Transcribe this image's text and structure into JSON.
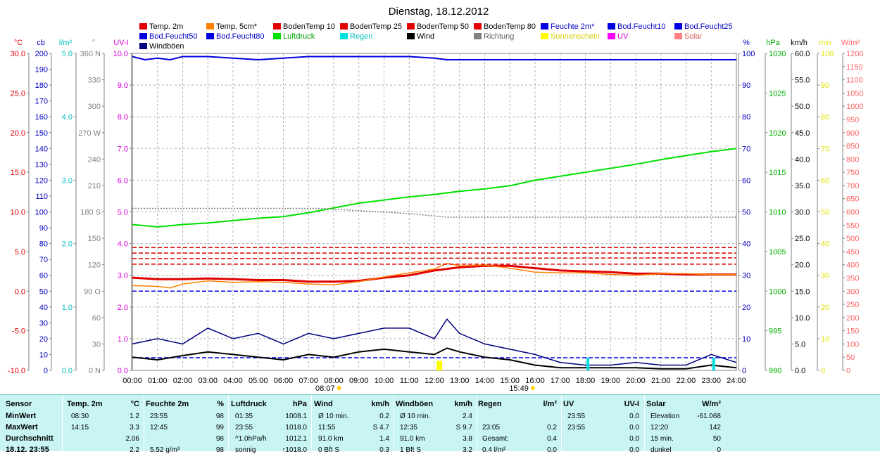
{
  "title": "Dienstag, 18.12.2012",
  "legend": [
    {
      "label": "Temp. 2m",
      "color": "#e00000",
      "style": "solid"
    },
    {
      "label": "Temp. 5cm*",
      "color": "#ff8000",
      "style": "solid"
    },
    {
      "label": "BodenTemp 10",
      "color": "#e00000",
      "style": "dash"
    },
    {
      "label": "BodenTemp 25",
      "color": "#e00000",
      "style": "dash"
    },
    {
      "label": "BodenTemp 50",
      "color": "#e00000",
      "style": "dash"
    },
    {
      "label": "BodenTemp 80",
      "color": "#e00000",
      "style": "dash"
    },
    {
      "label": "Feuchte 2m*",
      "color": "#0000e0",
      "style": "solid"
    },
    {
      "label": "Bod.Feucht10",
      "color": "#0000e0",
      "style": "dash"
    },
    {
      "label": "Bod.Feucht25",
      "color": "#0000e0",
      "style": "dash"
    },
    {
      "label": "Bod.Feucht50",
      "color": "#0000e0",
      "style": "dash"
    },
    {
      "label": "Bod.Feucht80",
      "color": "#0000e0",
      "style": "dash"
    },
    {
      "label": "Luftdruck",
      "color": "#00e000",
      "style": "solid"
    },
    {
      "label": "Regen",
      "color": "#00e0e0",
      "style": "bar"
    },
    {
      "label": "Wind",
      "color": "#000000",
      "style": "solid"
    },
    {
      "label": "Richtung",
      "color": "#808080",
      "style": "dot"
    },
    {
      "label": "Sonnenschein",
      "color": "#ffff00",
      "style": "bar"
    },
    {
      "label": "UV",
      "color": "#ff00ff",
      "style": "solid"
    },
    {
      "label": "Solar",
      "color": "#ff8080",
      "style": "solid"
    },
    {
      "label": "Windböen",
      "color": "#000080",
      "style": "solid"
    }
  ],
  "axes_left": [
    {
      "unit": "°C",
      "color": "#e00000",
      "ticks": [
        "30.0",
        "25.0",
        "20.0",
        "15.0",
        "10.0",
        "5.0",
        "0.0",
        "-5.0",
        "-10.0"
      ]
    },
    {
      "unit": "cb",
      "color": "#0000c0",
      "ticks": [
        "200",
        "190",
        "180",
        "170",
        "160",
        "150",
        "140",
        "130",
        "120",
        "110",
        "100",
        "90",
        "80",
        "70",
        "60",
        "50",
        "40",
        "30",
        "20",
        "10",
        "0"
      ]
    },
    {
      "unit": "l/m²",
      "color": "#00c0c0",
      "ticks": [
        "5.0",
        "4.0",
        "3.0",
        "2.0",
        "1.0",
        "0.0"
      ]
    },
    {
      "unit": "°",
      "color": "#808080",
      "ticks": [
        "360 N",
        "330",
        "300",
        "270 W",
        "240",
        "210",
        "180 S",
        "150",
        "120",
        "90 O",
        "60",
        "30",
        "0 N"
      ]
    },
    {
      "unit": "UV-I",
      "color": "#e000e0",
      "ticks": [
        "10.0",
        "9.0",
        "8.0",
        "7.0",
        "6.0",
        "5.0",
        "4.0",
        "3.0",
        "2.0",
        "1.0",
        "0.0"
      ]
    }
  ],
  "axes_right": [
    {
      "unit": "%",
      "color": "#0000c0",
      "ticks": [
        "100",
        "90",
        "80",
        "70",
        "60",
        "50",
        "40",
        "30",
        "20",
        "10",
        "0"
      ]
    },
    {
      "unit": "hPa",
      "color": "#00b000",
      "ticks": [
        "1030",
        "1025",
        "1020",
        "1015",
        "1010",
        "1005",
        "1000",
        "995",
        "990"
      ]
    },
    {
      "unit": "km/h",
      "color": "#000000",
      "ticks": [
        "60.0",
        "55.0",
        "50.0",
        "45.0",
        "40.0",
        "35.0",
        "30.0",
        "25.0",
        "20.0",
        "15.0",
        "10.0",
        "5.0",
        "0.0"
      ]
    },
    {
      "unit": "min",
      "color": "#e0e000",
      "ticks": [
        "100",
        "90",
        "80",
        "70",
        "60",
        "50",
        "40",
        "30",
        "20",
        "10",
        "0"
      ]
    },
    {
      "unit": "W/m²",
      "color": "#ff6060",
      "ticks": [
        "1200",
        "1150",
        "1100",
        "1050",
        "1000",
        "950",
        "900",
        "850",
        "800",
        "750",
        "700",
        "650",
        "600",
        "550",
        "500",
        "450",
        "400",
        "350",
        "300",
        "250",
        "200",
        "150",
        "100",
        "50",
        "0"
      ]
    }
  ],
  "time_labels": [
    "00:00",
    "01:00",
    "02:00",
    "03:00",
    "04:00",
    "05:00",
    "06:00",
    "07:00",
    "08:00",
    "09:00",
    "10:00",
    "11:00",
    "12:00",
    "13:00",
    "14:00",
    "15:00",
    "16:00",
    "17:00",
    "18:00",
    "19:00",
    "20:00",
    "21:00",
    "22:00",
    "23:00",
    "24:00"
  ],
  "sunrise_label": "08:07",
  "sunset_label": "15:49",
  "chart_data": {
    "type": "line",
    "title": "Dienstag, 18.12.2012",
    "x_unit": "hour",
    "xlim": [
      0,
      24
    ],
    "series": [
      {
        "name": "Feuchte 2m*",
        "unit": "%",
        "ylim": [
          0,
          100
        ],
        "color": "#0000e0",
        "x": [
          0,
          0.5,
          1,
          1.5,
          2,
          3,
          4,
          5,
          6,
          7,
          8,
          9,
          10,
          11,
          12,
          12.5,
          13,
          14,
          15,
          16,
          17,
          18,
          19,
          20,
          21,
          22,
          23,
          24
        ],
        "y": [
          99,
          98,
          98.5,
          98,
          99,
          99,
          98.5,
          98,
          98.5,
          99,
          99,
          99,
          99,
          99,
          98.5,
          98,
          98,
          98,
          98,
          98,
          98,
          98,
          98,
          98,
          98,
          98,
          98,
          98
        ]
      },
      {
        "name": "Luftdruck",
        "unit": "hPa",
        "ylim": [
          990,
          1030
        ],
        "color": "#00e000",
        "x": [
          0,
          1,
          2,
          3,
          4,
          5,
          6,
          7,
          8,
          9,
          10,
          11,
          12,
          13,
          14,
          15,
          16,
          17,
          18,
          19,
          20,
          21,
          22,
          23,
          24
        ],
        "y": [
          1008.4,
          1008.1,
          1008.4,
          1008.6,
          1008.9,
          1009.2,
          1009.4,
          1009.9,
          1010.5,
          1011.1,
          1011.5,
          1011.9,
          1012.2,
          1012.6,
          1012.9,
          1013.3,
          1014.0,
          1014.5,
          1015.0,
          1015.5,
          1016.0,
          1016.6,
          1017.1,
          1017.6,
          1018.0
        ]
      },
      {
        "name": "Temp. 2m",
        "unit": "°C",
        "ylim": [
          -10,
          30
        ],
        "color": "#e00000",
        "x": [
          0,
          1,
          2,
          3,
          4,
          5,
          6,
          7,
          8,
          9,
          10,
          11,
          12,
          13,
          14,
          15,
          16,
          17,
          18,
          19,
          20,
          21,
          22,
          23,
          24
        ],
        "y": [
          1.7,
          1.5,
          1.5,
          1.6,
          1.5,
          1.4,
          1.4,
          1.2,
          1.2,
          1.3,
          1.7,
          2.0,
          2.6,
          3.0,
          3.2,
          3.2,
          2.9,
          2.6,
          2.5,
          2.4,
          2.2,
          2.2,
          2.1,
          2.1,
          2.1
        ]
      },
      {
        "name": "Temp. 5cm*",
        "unit": "°C",
        "ylim": [
          -10,
          30
        ],
        "color": "#ff8000",
        "x": [
          0,
          1,
          1.5,
          2,
          3,
          4,
          5,
          6,
          7,
          8,
          9,
          10,
          11,
          12,
          12.5,
          13,
          14,
          15,
          16,
          17,
          18,
          19,
          20,
          21,
          22,
          23,
          24
        ],
        "y": [
          0.7,
          0.6,
          0.4,
          0.9,
          1.3,
          1.1,
          1.2,
          1.1,
          0.9,
          0.8,
          1.2,
          1.8,
          2.3,
          2.8,
          3.5,
          3.2,
          3.3,
          2.9,
          2.4,
          2.3,
          2.3,
          2.1,
          2.0,
          2.2,
          2.2,
          2.1,
          2.1
        ]
      },
      {
        "name": "BodenTemp 10",
        "unit": "°C",
        "ylim": [
          -10,
          30
        ],
        "color": "#e00000",
        "x": [
          0,
          24
        ],
        "y": [
          4.8,
          4.8
        ]
      },
      {
        "name": "BodenTemp 25",
        "unit": "°C",
        "ylim": [
          -10,
          30
        ],
        "color": "#e00000",
        "x": [
          0,
          24
        ],
        "y": [
          4.1,
          4.2
        ]
      },
      {
        "name": "BodenTemp 50",
        "unit": "°C",
        "ylim": [
          -10,
          30
        ],
        "color": "#e00000",
        "x": [
          0,
          24
        ],
        "y": [
          3.4,
          3.4
        ]
      },
      {
        "name": "BodenTemp 80",
        "unit": "°C",
        "ylim": [
          -10,
          30
        ],
        "color": "#e00000",
        "x": [
          0,
          24
        ],
        "y": [
          5.5,
          5.5
        ]
      },
      {
        "name": "Bod.Feucht10",
        "unit": "cb",
        "ylim": [
          0,
          200
        ],
        "color": "#0000e0",
        "x": [
          0,
          24
        ],
        "y": [
          50,
          50
        ]
      },
      {
        "name": "Bod.Feucht25",
        "unit": "cb",
        "ylim": [
          0,
          200
        ],
        "color": "#0000e0",
        "x": [
          0,
          24
        ],
        "y": [
          8,
          8
        ]
      },
      {
        "name": "Richtung",
        "unit": "°",
        "ylim": [
          0,
          360
        ],
        "color": "#808080",
        "x": [
          0,
          7.5,
          11,
          12.5,
          24
        ],
        "y": [
          184,
          184,
          178,
          174,
          174
        ]
      },
      {
        "name": "Wind",
        "unit": "km/h",
        "ylim": [
          0,
          60
        ],
        "color": "#000000",
        "x": [
          0,
          1,
          2,
          3,
          4,
          5,
          6,
          7,
          8,
          9,
          10,
          11,
          12,
          12.5,
          13,
          14,
          15,
          16,
          17,
          18,
          19,
          20,
          21,
          22,
          23,
          24
        ],
        "y": [
          2.5,
          2.0,
          2.8,
          3.5,
          3.0,
          2.5,
          2.0,
          3.0,
          2.5,
          3.5,
          4.0,
          3.5,
          3.0,
          4.2,
          3.5,
          2.5,
          2.0,
          1.0,
          0.5,
          0.5,
          0.5,
          0.5,
          0.3,
          0.3,
          1.0,
          0.5
        ]
      },
      {
        "name": "Windböen",
        "unit": "km/h",
        "ylim": [
          0,
          60
        ],
        "color": "#000080",
        "x": [
          0,
          1,
          2,
          3,
          4,
          5,
          6,
          7,
          8,
          9,
          10,
          11,
          12,
          12.5,
          13,
          14,
          15,
          16,
          17,
          18,
          19,
          20,
          21,
          22,
          23,
          24
        ],
        "y": [
          5,
          6,
          5,
          8,
          6,
          7,
          5,
          7,
          6,
          7,
          8,
          8,
          6,
          9.7,
          7,
          5,
          4,
          3,
          1.5,
          1.0,
          1.0,
          1.5,
          1.0,
          1.0,
          3.0,
          1.5
        ]
      }
    ],
    "rain_events": [
      {
        "x": 18.1,
        "value": 0.2
      },
      {
        "x": 23.1,
        "value": 0.2
      }
    ],
    "sunshine_events": [
      {
        "x": 12.2,
        "value": 3
      }
    ]
  },
  "table": {
    "headers": [
      "Sensor",
      "Temp. 2m",
      "°C",
      "Feuchte 2m",
      "%",
      "Luftdruck",
      "hPa",
      "Wind",
      "km/h",
      "Windböen",
      "km/h",
      "Regen",
      "l/m²",
      "UV",
      "UV-I",
      "Solar",
      "W/m²"
    ],
    "rows": [
      {
        "label": "MinWert",
        "cells": [
          "08:30",
          "1.2",
          "23:55",
          "98",
          "01:35",
          "1008.1",
          "Ø 10 min.",
          "0.2",
          "Ø 10 min.",
          "2.4",
          "",
          "",
          "23:55",
          "0.0",
          "Elevation",
          "-61.068"
        ]
      },
      {
        "label": "MaxWert",
        "cells": [
          "14:15",
          "3.3",
          "12:45",
          "99",
          "23:55",
          "1018.0",
          "11:55",
          "S 4.7",
          "12:35",
          "S 9.7",
          "23:05",
          "0.2",
          "23:55",
          "0.0",
          "12:20",
          "142"
        ]
      },
      {
        "label": "Durchschnitt",
        "cells": [
          "",
          "2.06",
          "",
          "98",
          "^1.0hPa/h",
          "1012.1",
          "91.0 km",
          "1.4",
          "91.0 km",
          "3.8",
          "Gesamt:",
          "0.4",
          "",
          "0.0",
          "15 min.",
          "50"
        ]
      },
      {
        "label": "18.12. 23:55",
        "cells": [
          "",
          "2.2",
          "5.52 g/m³",
          "98",
          "sonnig",
          "↑1018.0",
          "0 Bft S",
          "0.3",
          "1 Bft S",
          "3.2",
          "0.4 l/m²",
          "0.0",
          "",
          "0.0",
          "dunkel",
          "0"
        ]
      }
    ]
  }
}
